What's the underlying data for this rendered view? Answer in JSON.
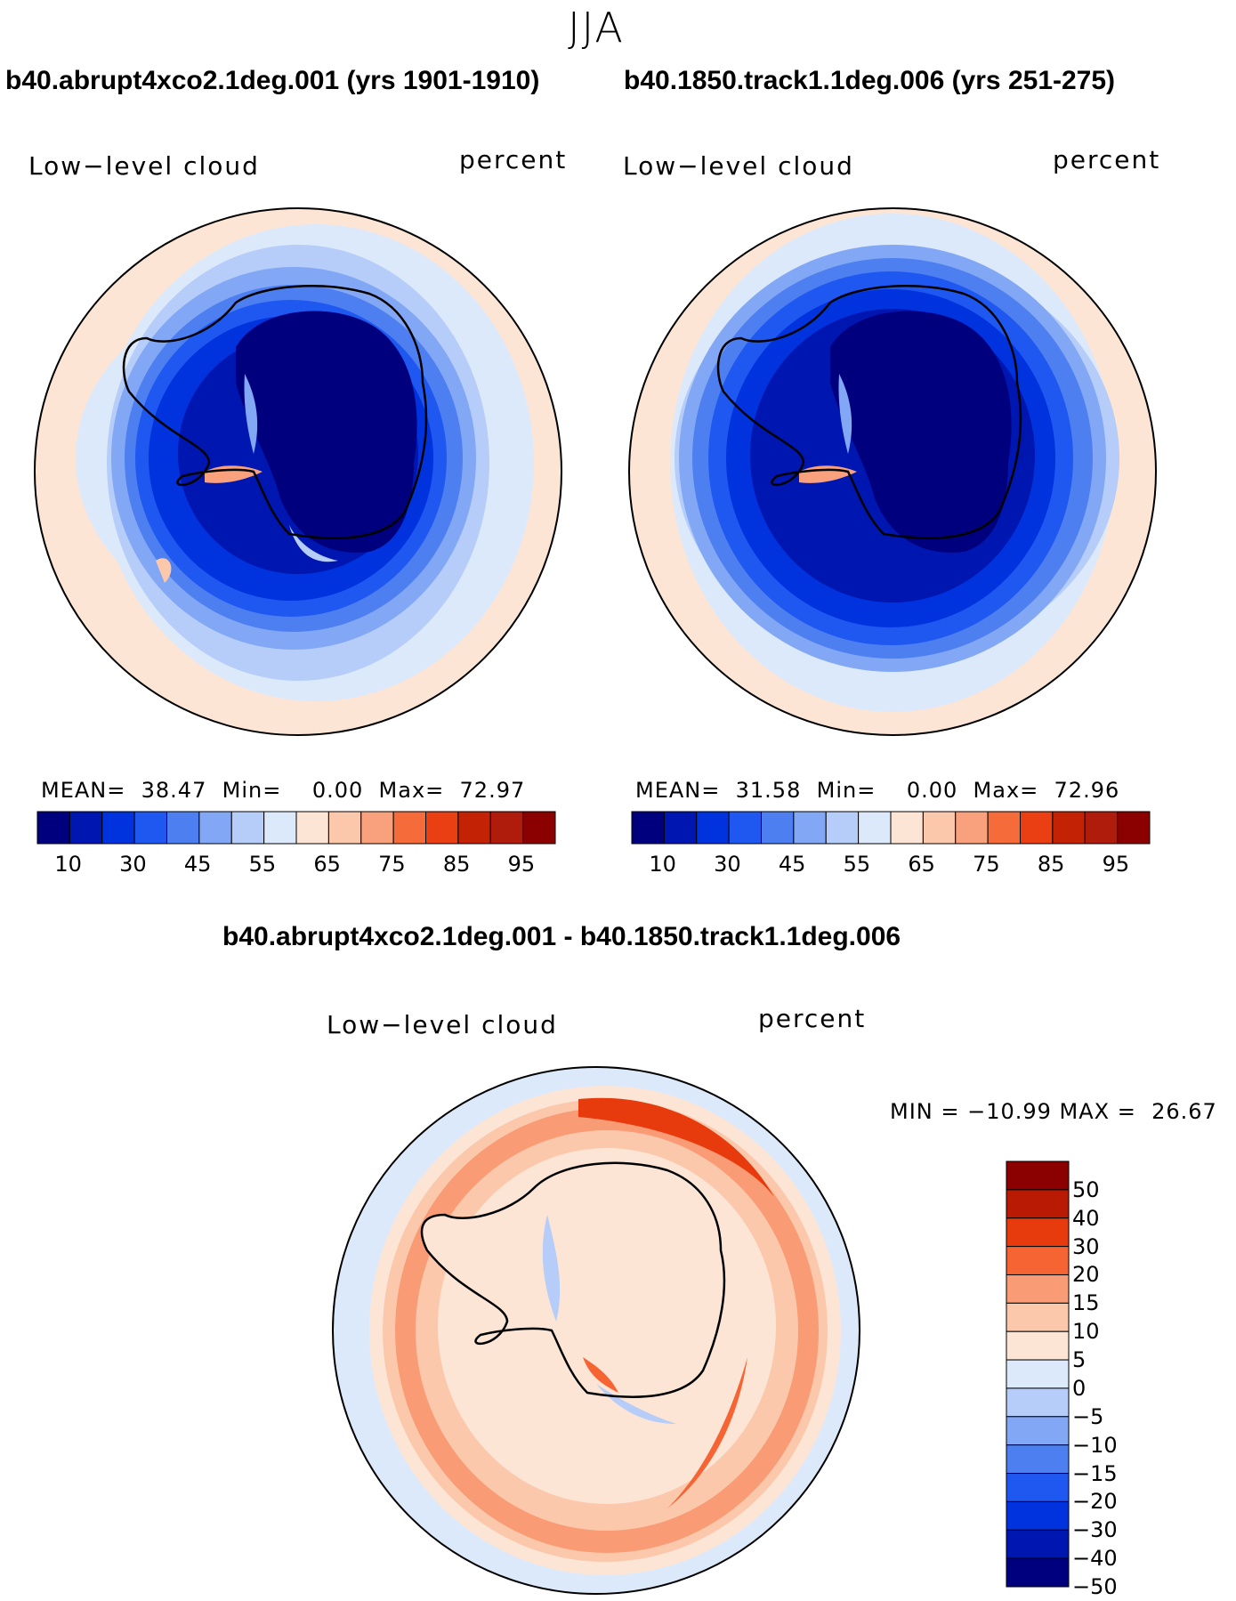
{
  "season": "JJA",
  "panels": [
    {
      "case_title": "b40.abrupt4xco2.1deg.001 (yrs 1901-1910)",
      "variable": "Low−level cloud",
      "units": "percent",
      "stats": {
        "mean_label": "MEAN=",
        "mean": "38.47",
        "min_label": "Min=",
        "min": "0.00",
        "max_label": "Max=",
        "max": "72.97"
      }
    },
    {
      "case_title": "b40.1850.track1.1deg.006 (yrs 251-275)",
      "variable": "Low−level cloud",
      "units": "percent",
      "stats": {
        "mean_label": "MEAN=",
        "mean": "31.58",
        "min_label": "Min=",
        "min": "0.00",
        "max_label": "Max=",
        "max": "72.96"
      }
    }
  ],
  "abs_colorbar": {
    "colors": [
      "#00007f",
      "#0016b0",
      "#0033dd",
      "#1f58f0",
      "#4d7ff0",
      "#82a7f5",
      "#b5cdf8",
      "#dce9fb",
      "#fde5d6",
      "#fcc8ac",
      "#f9a07c",
      "#f56c3a",
      "#ea3f13",
      "#c42205",
      "#b01c0c",
      "#8b0000"
    ],
    "tick_labels": [
      "10",
      "30",
      "45",
      "55",
      "65",
      "75",
      "85",
      "95"
    ]
  },
  "diff": {
    "title": "b40.abrupt4xco2.1deg.001 - b40.1850.track1.1deg.006",
    "variable": "Low−level cloud",
    "units": "percent",
    "stats_text": "MIN = −10.99 MAX =  26.67",
    "colorbar": {
      "colors": [
        "#8b0000",
        "#b81a04",
        "#e73a0d",
        "#f66434",
        "#f99b74",
        "#fcc8ac",
        "#fde5d6",
        "#dce9fb",
        "#b5cdf8",
        "#82a7f5",
        "#4d7ff0",
        "#1f58f0",
        "#0033dd",
        "#0016b0",
        "#00007f"
      ],
      "tick_labels": [
        "50",
        "40",
        "30",
        "20",
        "15",
        "10",
        "5",
        "0",
        "−5",
        "−10",
        "−15",
        "−20",
        "−30",
        "−40",
        "−50"
      ]
    }
  }
}
